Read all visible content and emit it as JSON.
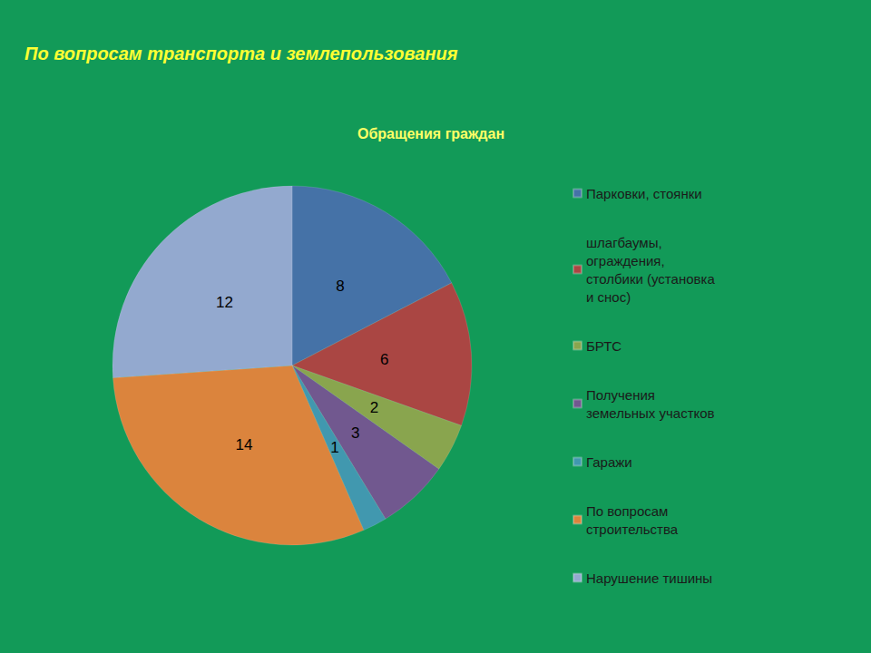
{
  "chart_data": {
    "type": "pie",
    "title": "По вопросам транспорта и землепользования",
    "subtitle": "Обращения граждан",
    "categories": [
      "Парковки, стоянки",
      "шлагбаумы, ограждения, столбики (установка и снос)",
      "БРТС",
      "Получения земельных участков",
      "Гаражи",
      "По вопросам строительства",
      "Нарушение тишины"
    ],
    "values": [
      8,
      6,
      2,
      3,
      1,
      14,
      12
    ],
    "colors": [
      "#4572a7",
      "#aa4643",
      "#89a54e",
      "#71588f",
      "#4198af",
      "#db843d",
      "#93a9cf"
    ],
    "legend": "right",
    "data_labels": true
  }
}
